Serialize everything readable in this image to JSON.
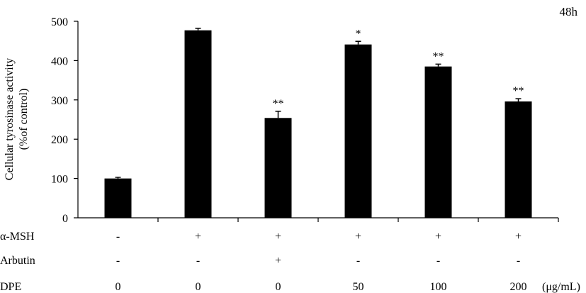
{
  "chart_data": {
    "type": "bar",
    "corner_label": "48h",
    "ylabel_lines": [
      "Cellular tyrosinase activity",
      "(%of control)"
    ],
    "ylim": [
      0,
      500
    ],
    "yticks": [
      0,
      100,
      200,
      300,
      400,
      500
    ],
    "ytick_labels": [
      "0",
      "100",
      "200",
      "300",
      "400",
      "500"
    ],
    "grid": false,
    "bar_color": "#000000",
    "values": [
      100,
      477,
      254,
      441,
      385,
      296
    ],
    "errors": [
      3,
      5,
      17,
      8,
      6,
      7
    ],
    "significance": [
      "",
      "",
      "**",
      "*",
      "**",
      "**"
    ],
    "condition_rows": [
      {
        "label": "α-MSH",
        "values": [
          "-",
          "+",
          "+",
          "+",
          "+",
          "+"
        ]
      },
      {
        "label": "Arbutin",
        "values": [
          "-",
          "-",
          "+",
          "-",
          "-",
          "-"
        ]
      },
      {
        "label": "DPE",
        "values": [
          "0",
          "0",
          "0",
          "50",
          "100",
          "200"
        ]
      }
    ],
    "unit": "(μg/mL)"
  }
}
